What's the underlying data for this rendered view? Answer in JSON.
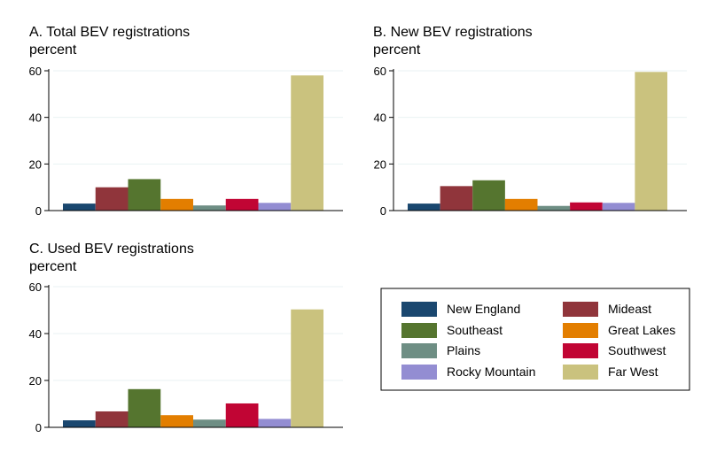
{
  "colors": {
    "New England": "#1a476f",
    "Mideast": "#90353b",
    "Southeast": "#55752f",
    "Great Lakes": "#e37e00",
    "Plains": "#6e8e84",
    "Southwest": "#c10534",
    "Rocky Mountain": "#938dd2",
    "Far West": "#cac27e"
  },
  "legend": {
    "items": [
      "New England",
      "Mideast",
      "Southeast",
      "Great Lakes",
      "Plains",
      "Southwest",
      "Rocky Mountain",
      "Far West"
    ],
    "columns": 2
  },
  "chart_data": [
    {
      "type": "bar",
      "title": "A. Total BEV registrations",
      "ylabel": "percent",
      "categories": [
        "New England",
        "Mideast",
        "Southeast",
        "Great Lakes",
        "Plains",
        "Southwest",
        "Rocky Mountain",
        "Far West"
      ],
      "values": [
        3.0,
        10.0,
        13.5,
        5.0,
        2.2,
        5.0,
        3.3,
        58.0
      ],
      "ylim": [
        0,
        60
      ],
      "yticks": [
        "0",
        "20",
        "40",
        "60"
      ],
      "grid": true
    },
    {
      "type": "bar",
      "title": "B. New BEV registrations",
      "ylabel": "percent",
      "categories": [
        "New England",
        "Mideast",
        "Southeast",
        "Great Lakes",
        "Plains",
        "Southwest",
        "Rocky Mountain",
        "Far West"
      ],
      "values": [
        3.0,
        10.5,
        13.0,
        5.0,
        2.0,
        3.5,
        3.3,
        59.5
      ],
      "ylim": [
        0,
        60
      ],
      "yticks": [
        "0",
        "20",
        "40",
        "60"
      ],
      "grid": true
    },
    {
      "type": "bar",
      "title": "C. Used BEV registrations",
      "ylabel": "percent",
      "categories": [
        "New England",
        "Mideast",
        "Southeast",
        "Great Lakes",
        "Plains",
        "Southwest",
        "Rocky Mountain",
        "Far West"
      ],
      "values": [
        3.0,
        6.8,
        16.3,
        5.2,
        3.3,
        10.2,
        3.6,
        50.3
      ],
      "ylim": [
        0,
        60
      ],
      "yticks": [
        "0",
        "20",
        "40",
        "60"
      ],
      "grid": true
    }
  ]
}
